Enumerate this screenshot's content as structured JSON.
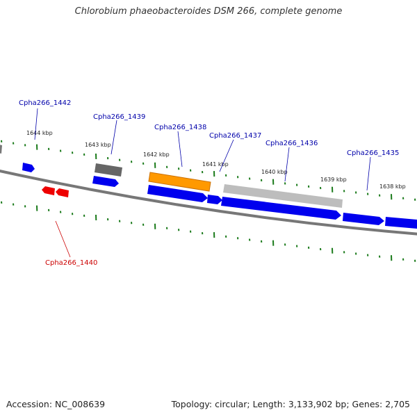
{
  "title": "Chlorobium phaeobacteroides DSM 266, complete genome",
  "footer": {
    "accession": "Accession: NC_008639",
    "summary": "Topology: circular; Length: 3,133,902 bp; Genes: 2,705"
  },
  "colors": {
    "forward_gene": "#0000ee",
    "reverse_gene": "#ee0000",
    "highlight_gene": "#ff9900",
    "gray_gene": "#666666",
    "light_gray_gene": "#bbbbbb",
    "backbone": "#777777",
    "tick": "#1a7a1a",
    "label_blue": "#0000aa",
    "label_red": "#cc0000"
  },
  "kbp_labels": [
    "1644 kbp",
    "1643 kbp",
    "1642 kbp",
    "1641 kbp",
    "1640 kbp",
    "1639 kbp",
    "1638 kbp"
  ],
  "gene_labels": [
    {
      "id": "g1442",
      "text": "Cpha266_1442",
      "strand": "forward"
    },
    {
      "id": "g1439",
      "text": "Cpha266_1439",
      "strand": "forward"
    },
    {
      "id": "g1438",
      "text": "Cpha266_1438",
      "strand": "forward"
    },
    {
      "id": "g1437",
      "text": "Cpha266_1437",
      "strand": "forward"
    },
    {
      "id": "g1436",
      "text": "Cpha266_1436",
      "strand": "forward"
    },
    {
      "id": "g1435",
      "text": "Cpha266_1435",
      "strand": "forward"
    },
    {
      "id": "g1440",
      "text": "Cpha266_1440",
      "strand": "reverse"
    }
  ]
}
